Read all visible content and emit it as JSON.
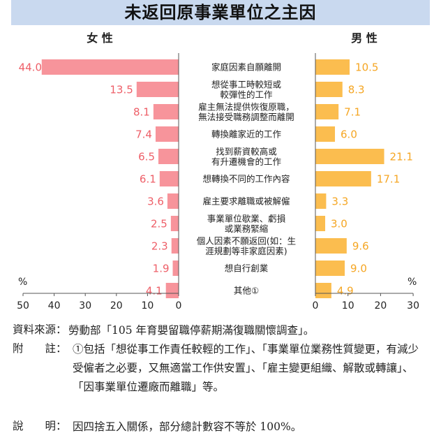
{
  "title": "未返回原事業單位之主因",
  "colors": {
    "female": "#f7949b",
    "male": "#fbbd4f",
    "female_text": "#ee5f68",
    "male_text": "#f5a623"
  },
  "chart_data": {
    "type": "bar",
    "orientation": "horizontal-butterfly",
    "categories": [
      [
        "家庭因素自願離開"
      ],
      [
        "想從事工時較短或",
        "較彈性的工作"
      ],
      [
        "雇主無法提供恢復原職，",
        "無法接受職務調整而離開"
      ],
      [
        "轉換離家近的工作"
      ],
      [
        "找到薪資較高或",
        "有升遷機會的工作"
      ],
      [
        "想轉換不同的工作內容"
      ],
      [
        "雇主要求離職或被解僱"
      ],
      [
        "事業單位歇業、虧損",
        "或業務緊縮"
      ],
      [
        "個人因素不願返回(如：生",
        "涯規劃等非家庭因素)"
      ],
      [
        "想自行創業"
      ],
      [
        "其他①"
      ]
    ],
    "series": [
      {
        "name": "女 性",
        "values": [
          44.0,
          13.5,
          8.1,
          7.4,
          6.5,
          6.1,
          3.6,
          2.5,
          2.3,
          1.9,
          4.1
        ],
        "labels": [
          "44.0",
          "13.5",
          "8.1",
          "7.4",
          "6.5",
          "6.1",
          "3.6",
          "2.5",
          "2.3",
          "1.9",
          "4.1"
        ]
      },
      {
        "name": "男 性",
        "values": [
          10.5,
          8.3,
          7.1,
          6.0,
          21.1,
          17.1,
          3.3,
          3.0,
          9.6,
          9.0,
          4.9
        ],
        "labels": [
          "10.5",
          "8.3",
          "7.1",
          "6.0",
          "21.1",
          "17.1",
          "3.3",
          "3.0",
          "9.6",
          "9.0",
          "4.9"
        ]
      }
    ],
    "female_axis": {
      "range": [
        0,
        50
      ],
      "ticks": [
        50,
        40,
        30,
        20,
        10,
        0
      ],
      "unit": "%"
    },
    "male_axis": {
      "range": [
        0,
        30
      ],
      "ticks": [
        0,
        10,
        20,
        30
      ],
      "unit": "%"
    }
  },
  "notes": [
    {
      "label": "資料來源：",
      "text": "勞動部「105 年育嬰留職停薪期滿復職關懷調查」。"
    },
    {
      "label": "附　　註：",
      "text": "①包括「想從事工作責任較輕的工作」、「事業單位業務性質變更，有減少受僱者之必要，又無適當工作供安置」、「雇主變更組織、解散或轉讓」、「因事業單位遷廠而離職」等。"
    },
    {
      "label": "說　　明：",
      "text": "因四捨五入關係，部分總計數容不等於 100%。"
    }
  ]
}
